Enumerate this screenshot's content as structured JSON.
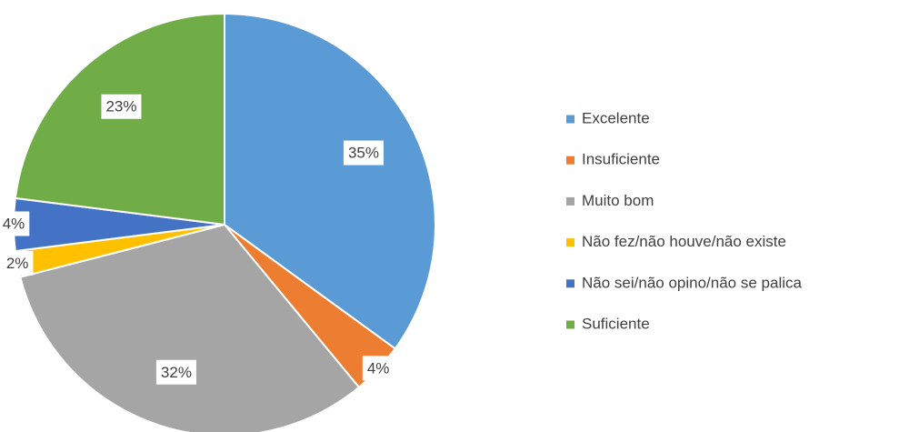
{
  "chart_data": {
    "type": "pie",
    "categories": [
      "Excelente",
      "Insuficiente",
      "Muito bom",
      "Não fez/não houve/não existe",
      "Não sei/não opino/não se palica",
      "Suficiente"
    ],
    "values": [
      35,
      4,
      32,
      2,
      4,
      23
    ],
    "value_labels": [
      "35%",
      "4%",
      "32%",
      "2%",
      "4%",
      "23%"
    ],
    "colors": [
      "#5b9bd5",
      "#ed7d31",
      "#a5a5a5",
      "#ffc000",
      "#4472c4",
      "#70ad47"
    ],
    "legend": "right"
  }
}
